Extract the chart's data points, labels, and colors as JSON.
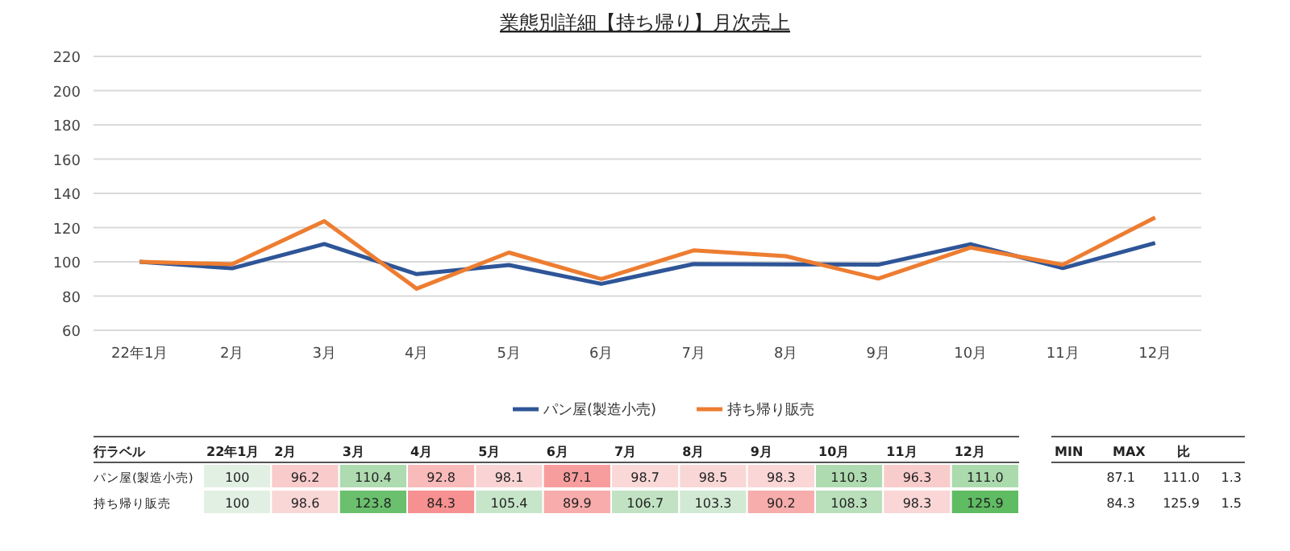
{
  "chart_data": [
    {
      "type": "line",
      "title": "業態別詳細【持ち帰り】月次売上",
      "categories": [
        "22年1月",
        "2月",
        "3月",
        "4月",
        "5月",
        "6月",
        "7月",
        "8月",
        "9月",
        "10月",
        "11月",
        "12月"
      ],
      "series": [
        {
          "name": "パン屋(製造小売)",
          "color": "#2e5597",
          "values": [
            100,
            96.2,
            110.4,
            92.8,
            98.1,
            87.1,
            98.7,
            98.5,
            98.3,
            110.3,
            96.3,
            111.0
          ]
        },
        {
          "name": "持ち帰り販売",
          "color": "#ed7d31",
          "values": [
            100,
            98.6,
            123.8,
            84.3,
            105.4,
            89.9,
            106.7,
            103.3,
            90.2,
            108.3,
            98.3,
            125.9
          ]
        }
      ],
      "ylim": [
        60,
        220
      ],
      "yticks": [
        60,
        80,
        100,
        120,
        140,
        160,
        180,
        200,
        220
      ],
      "grid": "y",
      "legend": "bottom",
      "marker": "none",
      "line_style": "solid"
    },
    {
      "type": "heatmap",
      "categories": [
        "22年1月",
        "2月",
        "3月",
        "4月",
        "5月",
        "6月",
        "7月",
        "8月",
        "9月",
        "10月",
        "11月",
        "12月"
      ],
      "y_categories": [
        "パン屋(製造小売)",
        "持ち帰り販売"
      ],
      "cells": [
        [
          100,
          96.2,
          110.4,
          92.8,
          98.1,
          87.1,
          98.7,
          98.5,
          98.3,
          110.3,
          96.3,
          111.0
        ],
        [
          100,
          98.6,
          123.8,
          84.3,
          105.4,
          89.9,
          106.7,
          103.3,
          90.2,
          108.3,
          98.3,
          125.9
        ]
      ],
      "cell_labels": [
        [
          "100",
          "96.2",
          "110.4",
          "92.8",
          "98.1",
          "87.1",
          "98.7",
          "98.5",
          "98.3",
          "110.3",
          "96.3",
          "111.0"
        ],
        [
          "100",
          "98.6",
          "123.8",
          "84.3",
          "105.4",
          "89.9",
          "106.7",
          "103.3",
          "90.2",
          "108.3",
          "98.3",
          "125.9"
        ]
      ],
      "annotations": [
        "行ラベル"
      ]
    },
    {
      "type": "other",
      "annotations": [
        "MIN",
        "MAX",
        "比",
        "87.1",
        "111.0",
        "1.3",
        "84.3",
        "125.9",
        "1.5"
      ]
    }
  ]
}
